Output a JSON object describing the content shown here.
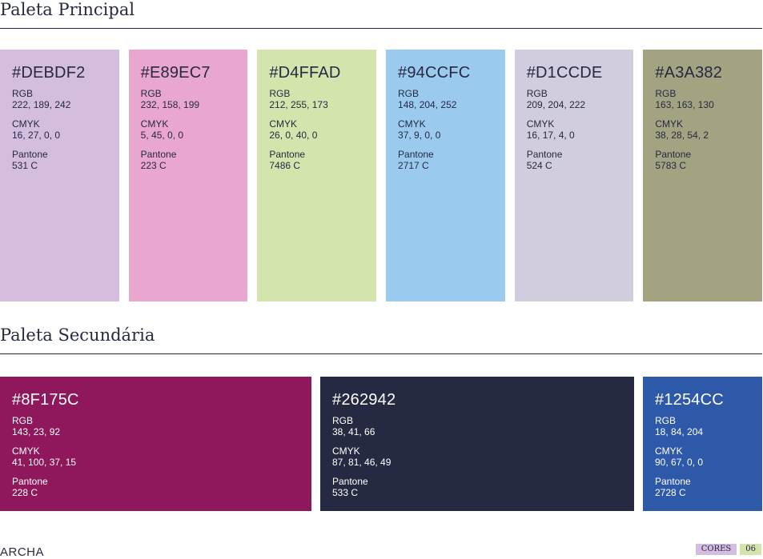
{
  "primary": {
    "title": "Paleta Principal",
    "swatches": [
      {
        "hex": "#DEBDF2",
        "bg": "#D5BDE0",
        "rgb_label": "RGB",
        "rgb": "222, 189, 242",
        "cmyk_label": "CMYK",
        "cmyk": "16, 27, 0, 0",
        "pantone_label": "Pantone",
        "pantone": "531 C"
      },
      {
        "hex": "#E89EC7",
        "bg": "#E9A6CE",
        "rgb_label": "RGB",
        "rgb": "232, 158, 199",
        "cmyk_label": "CMYK",
        "cmyk": "5, 45, 0, 0",
        "pantone_label": "Pantone",
        "pantone": "223 C"
      },
      {
        "hex": "#D4FFAD",
        "bg": "#D4E4AD",
        "rgb_label": "RGB",
        "rgb": "212, 255, 173",
        "cmyk_label": "CMYK",
        "cmyk": "26, 0, 40, 0",
        "pantone_label": "Pantone",
        "pantone": "7486 C"
      },
      {
        "hex": "#94CCFC",
        "bg": "#9ACBEF",
        "rgb_label": "RGB",
        "rgb": "148, 204, 252",
        "cmyk_label": "CMYK",
        "cmyk": "37, 9, 0, 0",
        "pantone_label": "Pantone",
        "pantone": "2717 C"
      },
      {
        "hex": "#D1CCDE",
        "bg": "#D1CCDE",
        "rgb_label": "RGB",
        "rgb": "209, 204, 222",
        "cmyk_label": "CMYK",
        "cmyk": "16, 17, 4, 0",
        "pantone_label": "Pantone",
        "pantone": "524 C"
      },
      {
        "hex": "#A3A382",
        "bg": "#A3A382",
        "rgb_label": "RGB",
        "rgb": "163, 163, 130",
        "cmyk_label": "CMYK",
        "cmyk": "38, 28, 54, 2",
        "pantone_label": "Pantone",
        "pantone": "5783 C"
      }
    ]
  },
  "secondary": {
    "title": "Paleta Secundária",
    "swatches": [
      {
        "hex": "#8F175C",
        "bg": "#8F175C",
        "rgb_label": "RGB",
        "rgb": "143, 23, 92",
        "cmyk_label": "CMYK",
        "cmyk": "41, 100, 37, 15",
        "pantone_label": "Pantone",
        "pantone": "228 C"
      },
      {
        "hex": "#262942",
        "bg": "#262942",
        "rgb_label": "RGB",
        "rgb": "38, 41, 66",
        "cmyk_label": "CMYK",
        "cmyk": "87, 81, 46, 49",
        "pantone_label": "Pantone",
        "pantone": "533 C"
      },
      {
        "hex": "#1254CC",
        "bg": "#2E58A8",
        "rgb_label": "RGB",
        "rgb": "18, 84, 204",
        "cmyk_label": "CMYK",
        "cmyk": "90, 67, 0, 0",
        "pantone_label": "Pantone",
        "pantone": "2728 C"
      }
    ]
  },
  "footer": {
    "logo": "ARCHA",
    "section_tag": "CORES",
    "page_number": "06"
  }
}
